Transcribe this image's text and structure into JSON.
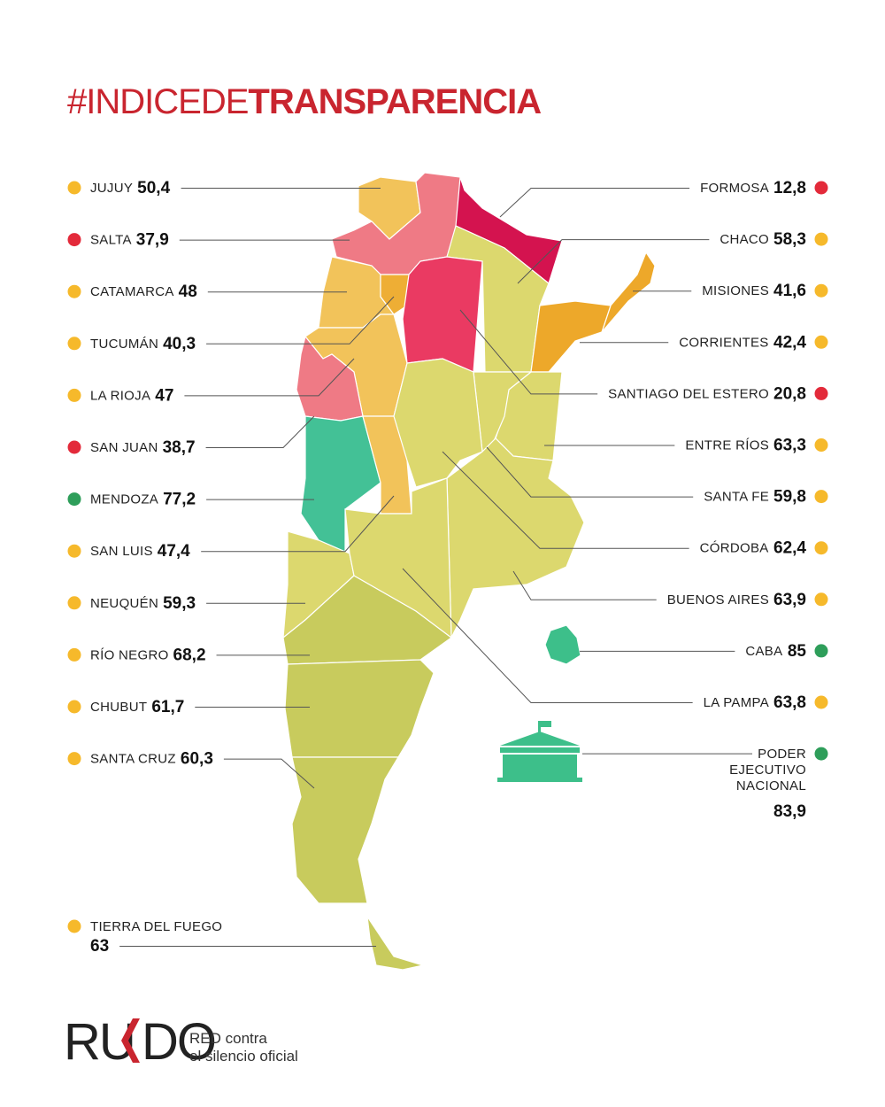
{
  "title": {
    "prefix": "#INDICEDE",
    "main": "TRANSPARENCIA"
  },
  "left": [
    {
      "name": "JUJUY",
      "value": "50,4",
      "dot": "#f6b92b",
      "fill": "#f2c35a"
    },
    {
      "name": "SALTA",
      "value": "37,9",
      "dot": "#e32a3a",
      "fill": "#ef7a85"
    },
    {
      "name": "CATAMARCA",
      "value": "48",
      "dot": "#f6b92b",
      "fill": "#f2c35a"
    },
    {
      "name": "TUCUMÁN",
      "value": "40,3",
      "dot": "#f6b92b",
      "fill": "#eeae35"
    },
    {
      "name": "LA RIOJA",
      "value": "47",
      "dot": "#f6b92b",
      "fill": "#f2c35a"
    },
    {
      "name": "SAN JUAN",
      "value": "38,7",
      "dot": "#e32a3a",
      "fill": "#ef7a85"
    },
    {
      "name": "MENDOZA",
      "value": "77,2",
      "dot": "#2e9e5a",
      "fill": "#43c196"
    },
    {
      "name": "SAN LUIS",
      "value": "47,4",
      "dot": "#f6b92b",
      "fill": "#f2c35a"
    },
    {
      "name": "NEUQUÉN",
      "value": "59,3",
      "dot": "#f6b92b",
      "fill": "#dcd86e"
    },
    {
      "name": "RÍO NEGRO",
      "value": "68,2",
      "dot": "#f6b92b",
      "fill": "#c8cb5d"
    },
    {
      "name": "CHUBUT",
      "value": "61,7",
      "dot": "#f6b92b",
      "fill": "#c8cb5d"
    },
    {
      "name": "SANTA CRUZ",
      "value": "60,3",
      "dot": "#f6b92b",
      "fill": "#c8cb5d"
    },
    {
      "name": "TIERRA DEL FUEGO",
      "value": "63",
      "dot": "#f6b92b",
      "fill": "#c8cb5d"
    }
  ],
  "right": [
    {
      "name": "FORMOSA",
      "value": "12,8",
      "dot": "#e32a3a",
      "fill": "#d4134f"
    },
    {
      "name": "CHACO",
      "value": "58,3",
      "dot": "#f6b92b",
      "fill": "#dcd86e"
    },
    {
      "name": "MISIONES",
      "value": "41,6",
      "dot": "#f6b92b",
      "fill": "#eda82a"
    },
    {
      "name": "CORRIENTES",
      "value": "42,4",
      "dot": "#f6b92b",
      "fill": "#eda82a"
    },
    {
      "name": "SANTIAGO DEL ESTERO",
      "value": "20,8",
      "dot": "#e32a3a",
      "fill": "#ea3a62"
    },
    {
      "name": "ENTRE RÍOS",
      "value": "63,3",
      "dot": "#f6b92b",
      "fill": "#dcd86e"
    },
    {
      "name": "SANTA FE",
      "value": "59,8",
      "dot": "#f6b92b",
      "fill": "#dcd86e"
    },
    {
      "name": "CÓRDOBA",
      "value": "62,4",
      "dot": "#f6b92b",
      "fill": "#dcd86e"
    },
    {
      "name": "BUENOS AIRES",
      "value": "63,9",
      "dot": "#f6b92b",
      "fill": "#dcd86e"
    },
    {
      "name": "CABA",
      "value": "85",
      "dot": "#2e9e5a",
      "fill": "#3dbf8a"
    },
    {
      "name": "LA PAMPA",
      "value": "63,8",
      "dot": "#f6b92b",
      "fill": "#dcd86e"
    },
    {
      "name": [
        "PODER",
        "EJECUTIVO",
        "NACIONAL"
      ],
      "value": "83,9",
      "dot": "#2e9e5a",
      "fill": "#3dbf8a"
    }
  ],
  "logo": {
    "left": "RU",
    "right": "DO",
    "tagline": [
      "RED contra",
      "el silencio oficial"
    ]
  }
}
